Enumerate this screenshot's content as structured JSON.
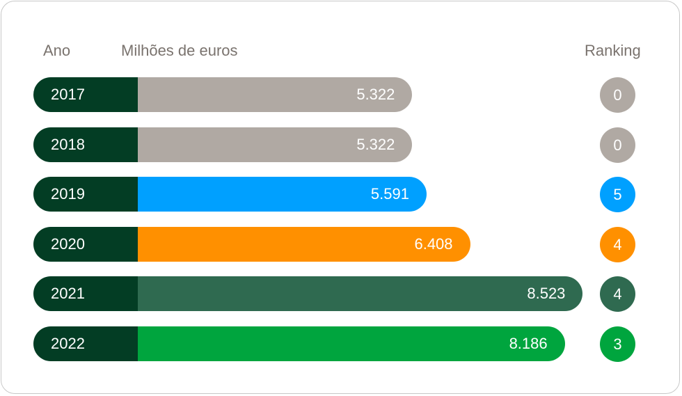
{
  "headers": {
    "year": "Ano",
    "value": "Milhões de euros",
    "rank": "Ranking"
  },
  "colors": {
    "year_bg": "#033d24",
    "gray": "#b0a9a3",
    "blue": "#00a0ff",
    "orange": "#ff9000",
    "dark_green": "#2f6a50",
    "green": "#00a53e"
  },
  "chart_data": {
    "type": "bar",
    "orientation": "horizontal",
    "categories": [
      "2017",
      "2018",
      "2019",
      "2020",
      "2021",
      "2022"
    ],
    "values": [
      5322,
      5322,
      5591,
      6408,
      8523,
      8186
    ],
    "value_labels": [
      "5.322",
      "5.322",
      "5.591",
      "6.408",
      "8.523",
      "8.186"
    ],
    "ranking": [
      "0",
      "0",
      "5",
      "4",
      "4",
      "3"
    ],
    "bar_colors": [
      "#b0a9a3",
      "#b0a9a3",
      "#00a0ff",
      "#ff9000",
      "#2f6a50",
      "#00a53e"
    ],
    "xlabel": "Milhões de euros",
    "ylabel": "Ano"
  }
}
